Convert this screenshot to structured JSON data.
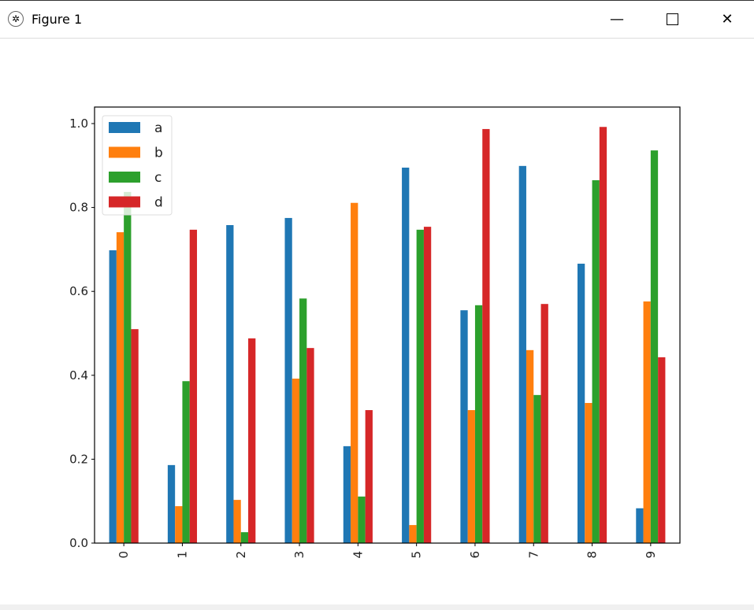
{
  "window": {
    "title": "Figure 1",
    "minimize_icon": "minimize-icon",
    "maximize_icon": "maximize-icon",
    "close_icon": "close-icon"
  },
  "chart_data": {
    "type": "bar",
    "title": "",
    "xlabel": "",
    "ylabel": "",
    "categories": [
      "0",
      "1",
      "2",
      "3",
      "4",
      "5",
      "6",
      "7",
      "8",
      "9"
    ],
    "ylim": [
      0,
      1.04
    ],
    "yticks": [
      "0.0",
      "0.2",
      "0.4",
      "0.6",
      "0.8",
      "1.0"
    ],
    "legend_placement": "upper-left",
    "series": [
      {
        "name": "a",
        "color": "#1f77b4",
        "values": [
          0.698,
          0.186,
          0.758,
          0.775,
          0.231,
          0.895,
          0.555,
          0.899,
          0.666,
          0.083
        ]
      },
      {
        "name": "b",
        "color": "#ff7f0e",
        "values": [
          0.741,
          0.088,
          0.103,
          0.392,
          0.811,
          0.043,
          0.317,
          0.46,
          0.334,
          0.576
        ]
      },
      {
        "name": "c",
        "color": "#2ca02c",
        "values": [
          0.837,
          0.386,
          0.026,
          0.583,
          0.111,
          0.747,
          0.567,
          0.353,
          0.865,
          0.936
        ]
      },
      {
        "name": "d",
        "color": "#d62728",
        "values": [
          0.51,
          0.747,
          0.488,
          0.465,
          0.317,
          0.754,
          0.987,
          0.57,
          0.992,
          0.443
        ]
      }
    ]
  }
}
